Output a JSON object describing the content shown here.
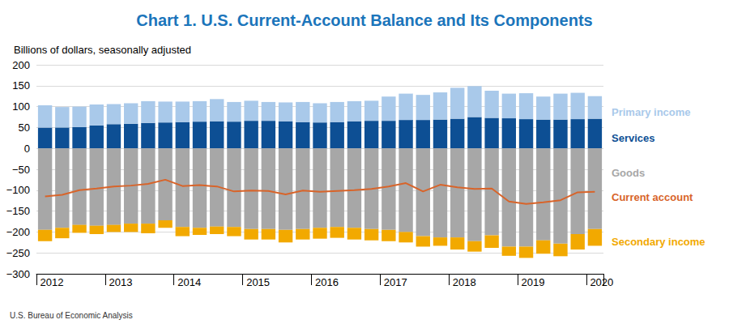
{
  "chart_data": {
    "type": "bar",
    "title": "Chart 1. U.S. Current-Account Balance and Its Components",
    "subtitle": "Billions of dollars, seasonally adjusted",
    "annotations": [
      "U.S. Bureau of Economic Analysis"
    ],
    "categories": [
      "2012",
      null,
      null,
      null,
      "2013",
      null,
      null,
      null,
      "2014",
      null,
      null,
      null,
      "2015",
      null,
      null,
      null,
      "2016",
      null,
      null,
      null,
      "2017",
      null,
      null,
      null,
      "2018",
      null,
      null,
      null,
      "2019",
      null,
      null,
      null,
      "2020"
    ],
    "stacked": true,
    "grid": true,
    "legend": "right",
    "ylim": [
      -300,
      200
    ],
    "yticks": [
      {
        "value": -300,
        "label": "−300"
      },
      {
        "value": -250,
        "label": "−250"
      },
      {
        "value": -200,
        "label": "−200"
      },
      {
        "value": -150,
        "label": "−150"
      },
      {
        "value": -100,
        "label": "−100"
      },
      {
        "value": -50,
        "label": "−50"
      },
      0,
      50,
      100,
      150,
      200
    ],
    "series": [
      {
        "name": "Primary income",
        "type": "bar",
        "color": "#a9c9ea",
        "values": [
          53,
          49,
          49,
          50,
          48,
          49,
          52,
          50,
          49,
          49,
          53,
          47,
          48,
          45,
          45,
          48,
          46,
          48,
          48,
          48,
          58,
          63,
          60,
          65,
          74,
          74,
          65,
          59,
          62,
          55,
          62,
          63,
          54
        ]
      },
      {
        "name": "Services",
        "type": "bar",
        "color": "#0d4f94",
        "values": [
          50,
          50,
          51,
          55,
          58,
          59,
          61,
          62,
          63,
          64,
          65,
          64,
          66,
          66,
          65,
          63,
          62,
          63,
          65,
          66,
          66,
          68,
          68,
          69,
          71,
          75,
          73,
          72,
          70,
          69,
          69,
          70,
          71
        ]
      },
      {
        "name": "Goods",
        "type": "bar",
        "color": "#a7a7a7",
        "values": [
          -195,
          -190,
          -183,
          -185,
          -183,
          -180,
          -180,
          -172,
          -188,
          -190,
          -187,
          -188,
          -193,
          -193,
          -195,
          -193,
          -190,
          -188,
          -190,
          -193,
          -195,
          -200,
          -210,
          -213,
          -213,
          -222,
          -208,
          -235,
          -235,
          -220,
          -228,
          -205,
          -193
        ]
      },
      {
        "name": "Current account",
        "type": "line",
        "color": "#d8642a",
        "values": [
          -115,
          -111,
          -100,
          -96,
          -91,
          -89,
          -85,
          -75,
          -90,
          -88,
          -91,
          -103,
          -101,
          -102,
          -110,
          -101,
          -104,
          -102,
          -100,
          -97,
          -91,
          -83,
          -103,
          -87,
          -93,
          -97,
          -96,
          -127,
          -133,
          -129,
          -124,
          -105,
          -104
        ]
      },
      {
        "name": "Secondary income",
        "type": "bar",
        "color": "#f2a900",
        "values": [
          -27,
          -25,
          -19,
          -20,
          -17,
          -20,
          -23,
          -18,
          -22,
          -17,
          -18,
          -22,
          -25,
          -25,
          -30,
          -25,
          -26,
          -26,
          -28,
          -27,
          -27,
          -25,
          -25,
          -20,
          -29,
          -25,
          -30,
          -22,
          -27,
          -32,
          -30,
          -37,
          -40
        ]
      }
    ]
  }
}
